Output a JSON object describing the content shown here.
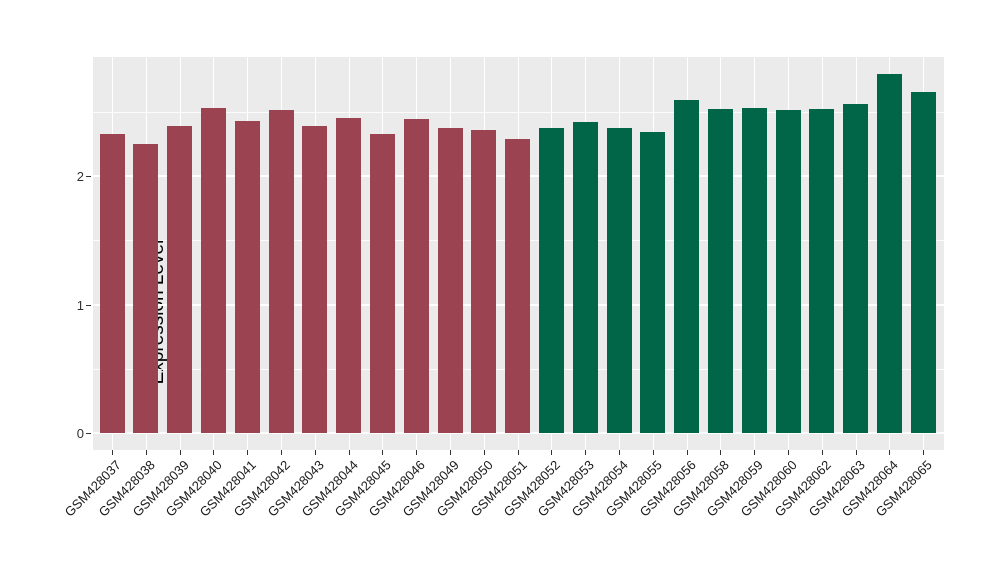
{
  "chart_data": {
    "type": "bar",
    "title": "",
    "xlabel": "",
    "ylabel": "Expression Level",
    "ylim": [
      0,
      2.93
    ],
    "ytick_labels": [
      "0",
      "1",
      "2"
    ],
    "ytick_values": [
      0,
      1,
      2
    ],
    "minor_ytick_values": [
      0.5,
      1.5,
      2.5
    ],
    "grid": "on",
    "legend_position": "none",
    "panel_background": "#EBEBEB",
    "grid_color": "#FFFFFF",
    "tick_color": "#333333",
    "categories": [
      "GSM428037",
      "GSM428038",
      "GSM428039",
      "GSM428040",
      "GSM428041",
      "GSM428042",
      "GSM428043",
      "GSM428044",
      "GSM428045",
      "GSM428046",
      "GSM428049",
      "GSM428050",
      "GSM428051",
      "GSM428052",
      "GSM428053",
      "GSM428054",
      "GSM428055",
      "GSM428056",
      "GSM428058",
      "GSM428059",
      "GSM428060",
      "GSM428062",
      "GSM428063",
      "GSM428064",
      "GSM428065"
    ],
    "values": [
      2.33,
      2.25,
      2.39,
      2.53,
      2.43,
      2.51,
      2.39,
      2.45,
      2.33,
      2.44,
      2.37,
      2.36,
      2.29,
      2.37,
      2.42,
      2.37,
      2.34,
      2.59,
      2.52,
      2.53,
      2.51,
      2.52,
      2.56,
      2.79,
      2.65
    ],
    "bar_groups": [
      "maroon",
      "maroon",
      "maroon",
      "maroon",
      "maroon",
      "maroon",
      "maroon",
      "maroon",
      "maroon",
      "maroon",
      "maroon",
      "maroon",
      "maroon",
      "green",
      "green",
      "green",
      "green",
      "green",
      "green",
      "green",
      "green",
      "green",
      "green",
      "green",
      "green"
    ],
    "colors": {
      "maroon": "#9C4351",
      "green": "#006647"
    }
  }
}
